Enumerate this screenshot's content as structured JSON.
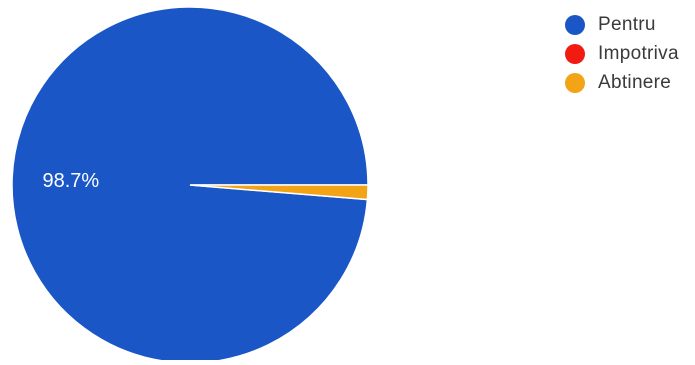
{
  "chart_data": {
    "type": "pie",
    "slices": [
      {
        "label": "Pentru",
        "value": 98.7,
        "color": "#1a56c6",
        "data_label": "98.7%"
      },
      {
        "label": "Impotriva",
        "value": 0.0,
        "color": "#f21b12"
      },
      {
        "label": "Abtinere",
        "value": 1.3,
        "color": "#f2a316"
      }
    ],
    "legend_position": "top-right"
  }
}
